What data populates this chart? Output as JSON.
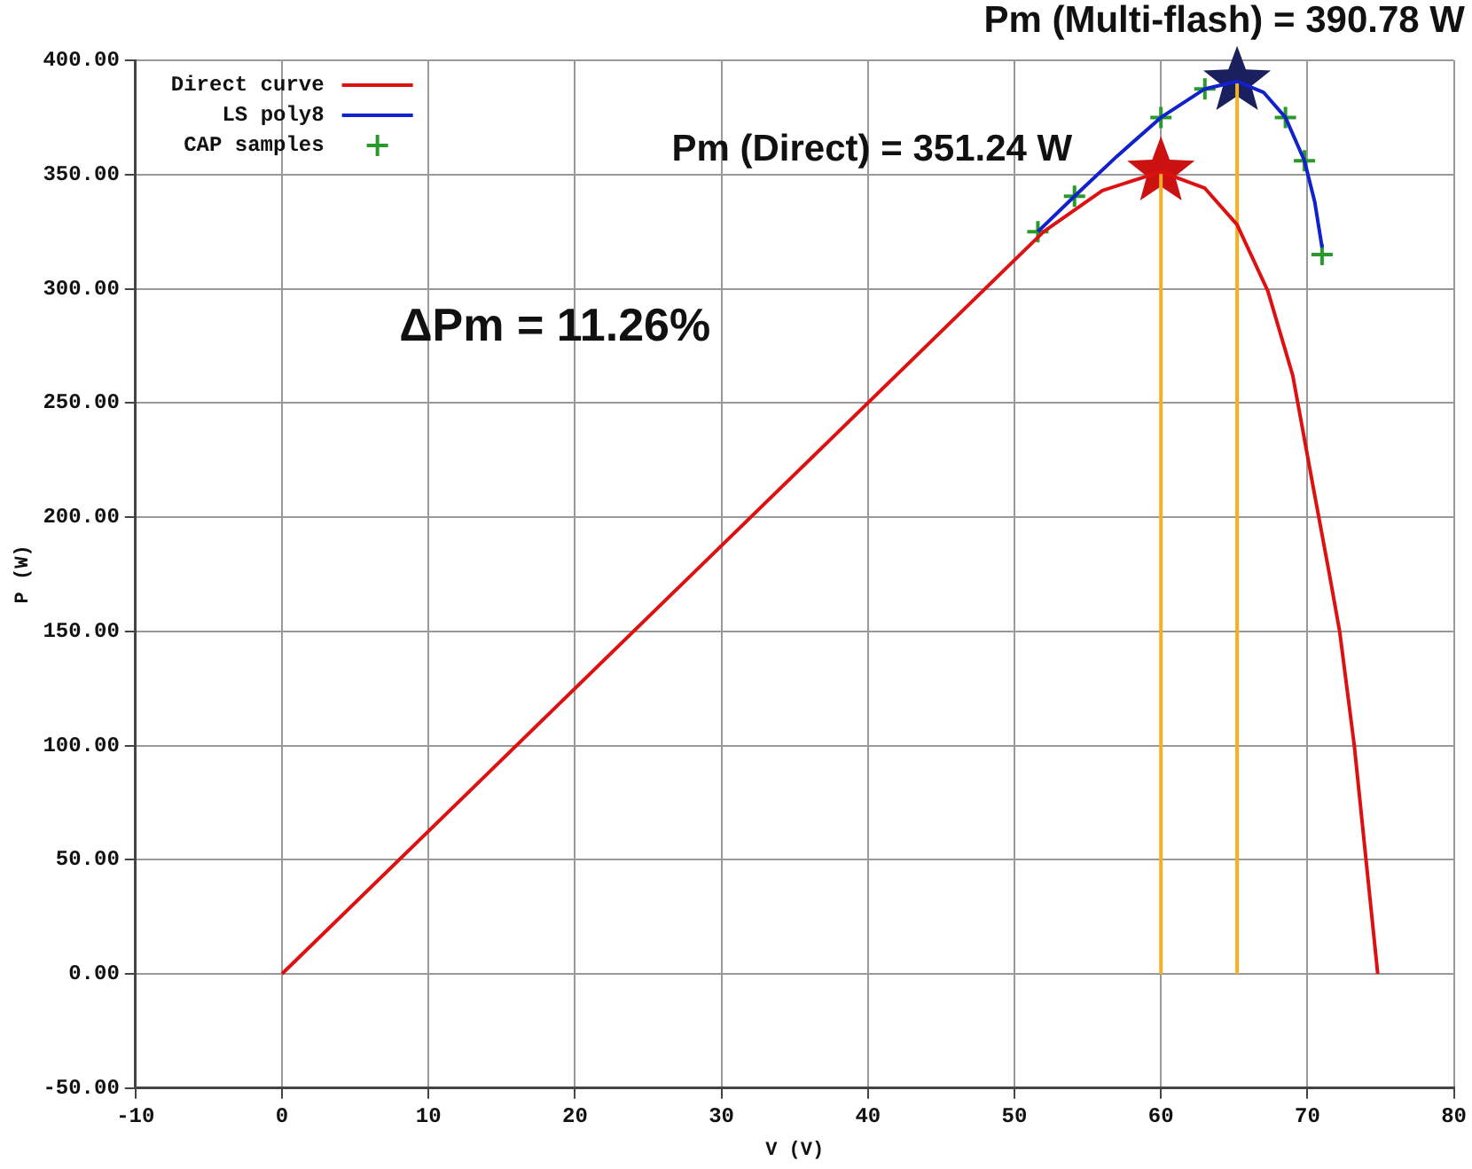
{
  "chart_data": {
    "type": "line",
    "xlabel": "V (V)",
    "ylabel": "P (W)",
    "xlim": [
      -10,
      80
    ],
    "xticks": [
      -10,
      0,
      10,
      20,
      30,
      40,
      50,
      60,
      70,
      80
    ],
    "ylim": [
      -50,
      400
    ],
    "yticks": [
      {
        "value": -50,
        "label": "-50.00"
      },
      {
        "value": 0,
        "label": "0.00"
      },
      {
        "value": 50,
        "label": "50.00"
      },
      {
        "value": 100,
        "label": "100.00"
      },
      {
        "value": 150,
        "label": "150.00"
      },
      {
        "value": 200,
        "label": "200.00"
      },
      {
        "value": 250,
        "label": "250.00"
      },
      {
        "value": 300,
        "label": "300.00"
      },
      {
        "value": 350,
        "label": "350.00"
      },
      {
        "value": 400,
        "label": "400.00"
      }
    ],
    "grid": true,
    "legend": "top left",
    "annotations": [
      "ΔPm = 11.26%",
      {
        "text": "Pm (Direct) = 351.24 W",
        "x": 60,
        "y": 351.24
      },
      {
        "text": "Pm (Multi-flash) = 390.78 W",
        "x": 65.2,
        "y": 390.78
      }
    ],
    "series": [
      {
        "name": "Direct curve",
        "type": "line",
        "color": "#dd1111",
        "marker": "none",
        "x": [
          0,
          52,
          56,
          60,
          63,
          65.2,
          67.3,
          69,
          70.4,
          71.5,
          72.2,
          73.2,
          74,
          74.8
        ],
        "values": [
          0,
          325,
          343,
          351.24,
          344,
          328,
          299,
          262,
          213,
          175,
          150,
          100,
          50,
          0
        ]
      },
      {
        "name": "LS poly8",
        "type": "line",
        "color": "#1122cc",
        "marker": "none",
        "x": [
          51.6,
          54.1,
          57,
          60,
          63,
          65.2,
          67,
          68.5,
          69.8,
          70.5,
          71
        ],
        "values": [
          325,
          340.5,
          358,
          375,
          387.5,
          390.78,
          386,
          375,
          356,
          338,
          318
        ]
      },
      {
        "name": "CAP samples",
        "type": "scatter",
        "color": "#2a9a2a",
        "marker": "cross",
        "x": [
          51.6,
          54.1,
          60,
          63,
          68.5,
          69.8,
          71
        ],
        "values": [
          325,
          340.5,
          375,
          387.5,
          375,
          356,
          315
        ]
      },
      {
        "type": "line",
        "color": "#f5b021",
        "marker": "none",
        "x": [
          60,
          60
        ],
        "values": [
          0,
          351.24
        ]
      },
      {
        "type": "line",
        "color": "#f5b021",
        "marker": "none",
        "x": [
          65.2,
          65.2
        ],
        "values": [
          0,
          390.78
        ]
      },
      {
        "type": "scatter",
        "color": "#cc1111",
        "marker": "star",
        "x": [
          60
        ],
        "values": [
          351.24
        ]
      },
      {
        "type": "scatter",
        "color": "#1a1f5e",
        "marker": "star",
        "x": [
          65.2
        ],
        "values": [
          390.78
        ]
      }
    ]
  }
}
